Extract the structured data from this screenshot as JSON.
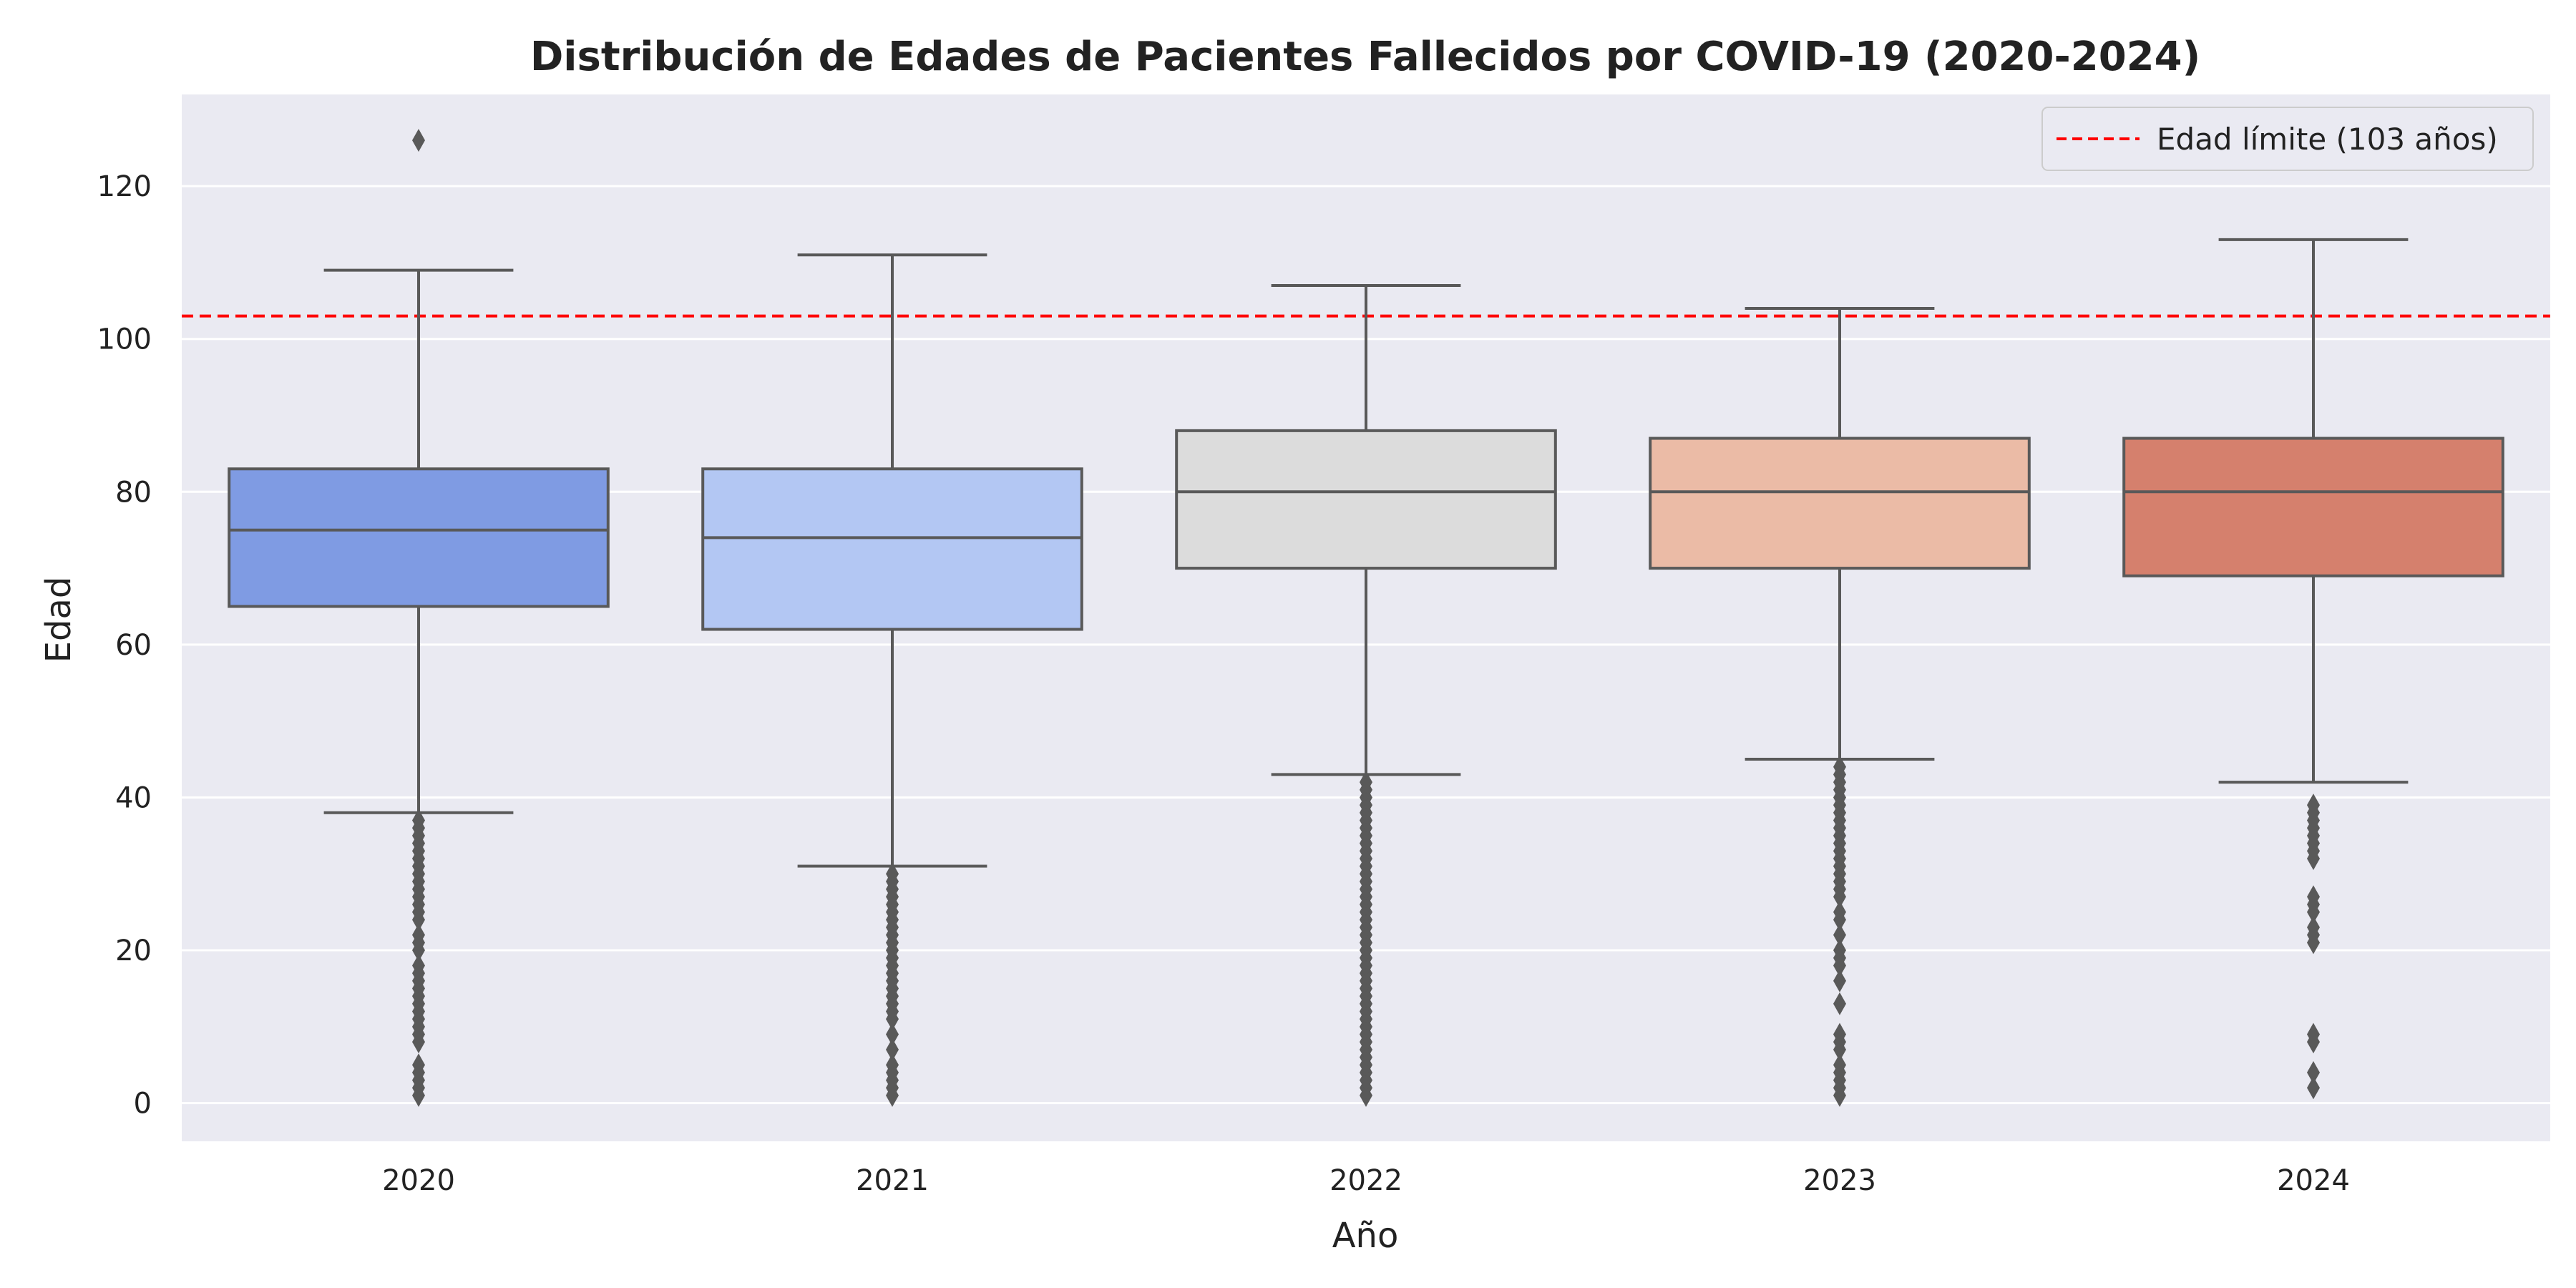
{
  "chart_data": {
    "type": "box",
    "title": "Distribución de Edades de Pacientes Fallecidos por COVID-19 (2020-2024)",
    "xlabel": "Año",
    "ylabel": "Edad",
    "ylim": [
      -5,
      132
    ],
    "yticks": [
      0,
      20,
      40,
      60,
      80,
      100,
      120
    ],
    "grid": true,
    "legend": {
      "placement": "top-right",
      "entries": [
        {
          "label": "Edad límite (103 años)",
          "color": "#ff0000",
          "style": "dashed"
        }
      ]
    },
    "reference_line": {
      "y": 103,
      "color": "#ff0000",
      "label": "Edad límite (103 años)"
    },
    "categories": [
      "2020",
      "2021",
      "2022",
      "2023",
      "2024"
    ],
    "boxes": [
      {
        "category": "2020",
        "whisker_low": 38,
        "q1": 65,
        "median": 75,
        "q3": 83,
        "whisker_high": 109,
        "color": "#7f9be3",
        "outliers": [
          1,
          2,
          3,
          4,
          5,
          8,
          9,
          10,
          11,
          12,
          13,
          14,
          15,
          16,
          17,
          18,
          20,
          21,
          22,
          24,
          25,
          26,
          27,
          28,
          29,
          30,
          31,
          32,
          33,
          34,
          35,
          36,
          37,
          126
        ]
      },
      {
        "category": "2021",
        "whisker_low": 31,
        "q1": 62,
        "median": 74,
        "q3": 83,
        "whisker_high": 111,
        "color": "#b3c7f3",
        "outliers": [
          1,
          2,
          3,
          4,
          5,
          7,
          9,
          11,
          12,
          13,
          14,
          15,
          16,
          17,
          18,
          19,
          20,
          21,
          22,
          23,
          24,
          25,
          26,
          27,
          28,
          29,
          30
        ]
      },
      {
        "category": "2022",
        "whisker_low": 43,
        "q1": 70,
        "median": 80,
        "q3": 88,
        "whisker_high": 107,
        "color": "#dcdcdc",
        "outliers": [
          1,
          2,
          3,
          4,
          5,
          6,
          7,
          8,
          9,
          10,
          11,
          12,
          13,
          14,
          15,
          16,
          17,
          18,
          19,
          20,
          21,
          22,
          23,
          24,
          25,
          26,
          27,
          28,
          29,
          30,
          31,
          32,
          33,
          34,
          35,
          36,
          37,
          38,
          39,
          40,
          41,
          42
        ]
      },
      {
        "category": "2023",
        "whisker_low": 45,
        "q1": 70,
        "median": 80,
        "q3": 87,
        "whisker_high": 104,
        "color": "#ebbba6",
        "outliers": [
          1,
          2,
          3,
          4,
          5,
          7,
          8,
          9,
          13,
          16,
          18,
          19,
          20,
          22,
          24,
          25,
          27,
          28,
          29,
          30,
          31,
          32,
          33,
          34,
          35,
          36,
          37,
          38,
          39,
          40,
          41,
          42,
          43,
          44
        ]
      },
      {
        "category": "2024",
        "whisker_low": 42,
        "q1": 69,
        "median": 80,
        "q3": 87,
        "whisker_high": 113,
        "color": "#d5806d",
        "outliers": [
          2,
          4,
          8,
          9,
          21,
          22,
          23,
          25,
          26,
          27,
          32,
          33,
          34,
          35,
          36,
          37,
          38,
          39
        ]
      }
    ]
  }
}
